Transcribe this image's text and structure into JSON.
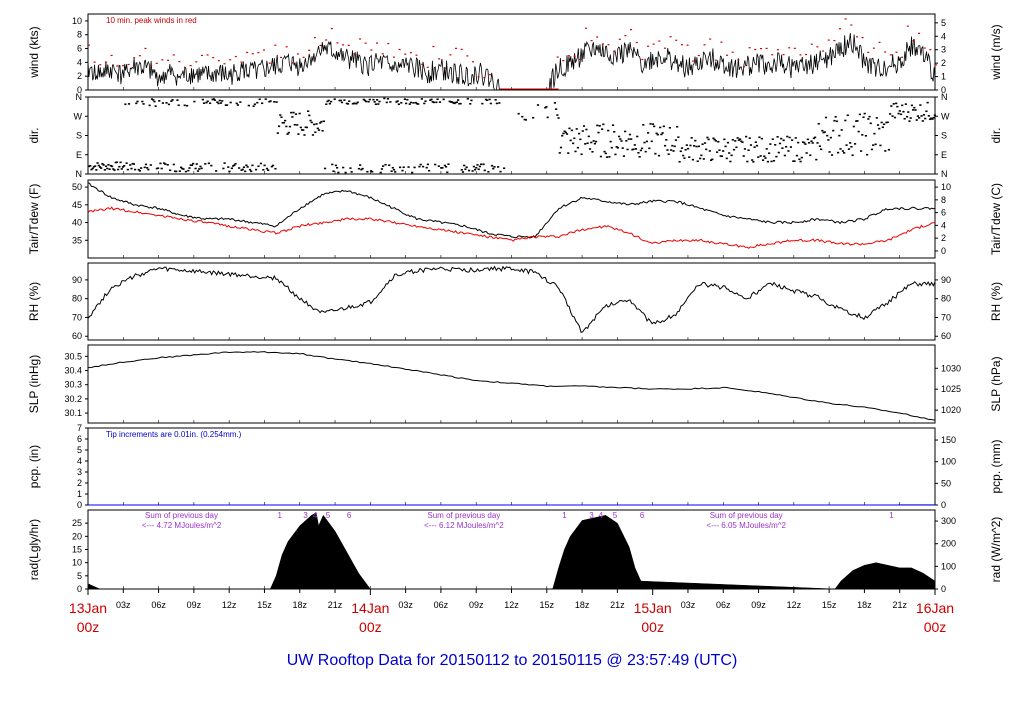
{
  "footer": "UW Rooftop Data for 20150112  to  20150115 @ 23:57:49  (UTC)",
  "colors": {
    "primary": "#000000",
    "peak": "#cc0000",
    "dew": "#ee0000",
    "precip": "#0000ff",
    "note_blue": "#0000cc",
    "note_purple": "#9933cc",
    "day_label": "#cc0000"
  },
  "x_axis": {
    "hours_total": 72,
    "hour_ticks": [
      {
        "h": 3,
        "label": "03z"
      },
      {
        "h": 6,
        "label": "06z"
      },
      {
        "h": 9,
        "label": "09z"
      },
      {
        "h": 12,
        "label": "12z"
      },
      {
        "h": 15,
        "label": "15z"
      },
      {
        "h": 18,
        "label": "18z"
      },
      {
        "h": 21,
        "label": "21z"
      },
      {
        "h": 27,
        "label": "03z"
      },
      {
        "h": 30,
        "label": "06z"
      },
      {
        "h": 33,
        "label": "09z"
      },
      {
        "h": 36,
        "label": "12z"
      },
      {
        "h": 39,
        "label": "15z"
      },
      {
        "h": 42,
        "label": "18z"
      },
      {
        "h": 45,
        "label": "21z"
      },
      {
        "h": 51,
        "label": "03z"
      },
      {
        "h": 54,
        "label": "06z"
      },
      {
        "h": 57,
        "label": "09z"
      },
      {
        "h": 60,
        "label": "12z"
      },
      {
        "h": 63,
        "label": "15z"
      },
      {
        "h": 66,
        "label": "18z"
      },
      {
        "h": 69,
        "label": "21z"
      }
    ],
    "day_labels": [
      {
        "h": 0,
        "day": "13Jan",
        "time": "00z"
      },
      {
        "h": 24,
        "day": "14Jan",
        "time": "00z"
      },
      {
        "h": 48,
        "day": "15Jan",
        "time": "00z"
      },
      {
        "h": 72,
        "day": "16Jan",
        "time": "00z"
      }
    ]
  },
  "chart_data": [
    {
      "type": "line",
      "id": "wind",
      "ylabel": "wind (kts)",
      "ylabel_right": "wind (m/s)",
      "ylim": [
        0,
        11
      ],
      "left_ticks": [
        0,
        2,
        4,
        6,
        8,
        10
      ],
      "right_ticks": [
        0,
        1,
        2,
        3,
        4,
        5
      ],
      "annotation": "10 min. peak winds in red",
      "series": [
        {
          "x": [
            0,
            1,
            2,
            3,
            4,
            5,
            6,
            7,
            8,
            9,
            10,
            11,
            12,
            13,
            14,
            15,
            16,
            17,
            18,
            19,
            20,
            21,
            22,
            23,
            24,
            25,
            26,
            27,
            28,
            29,
            30,
            31,
            32,
            33,
            34,
            35,
            36,
            37,
            38,
            39,
            40,
            41,
            42,
            43,
            44,
            45,
            46,
            47,
            48,
            49,
            50,
            51,
            52,
            53,
            54,
            55,
            56,
            57,
            58,
            59,
            60,
            61,
            62,
            63,
            64,
            65,
            66,
            67,
            68,
            69,
            70,
            71,
            72
          ],
          "y": [
            3,
            2.5,
            3,
            2,
            3.5,
            3,
            2,
            2.5,
            2,
            2.5,
            2,
            2.5,
            2,
            3,
            2.5,
            3,
            3.5,
            4,
            3.5,
            5,
            6,
            5.5,
            4.5,
            4,
            3.5,
            4,
            3,
            3.5,
            3,
            2.5,
            3,
            2.5,
            2,
            2.5,
            2,
            0,
            0,
            0,
            0,
            0,
            3,
            4,
            5,
            6,
            5.5,
            5,
            5.5,
            4,
            4.5,
            5,
            4,
            3,
            4,
            4.5,
            4,
            3,
            3.5,
            4,
            3.5,
            4,
            3,
            3.5,
            4,
            4.5,
            6,
            7,
            4,
            3,
            3.5,
            4,
            6.5,
            5,
            2
          ]
        }
      ]
    },
    {
      "type": "scatter",
      "id": "dir",
      "ylabel": "dir.",
      "ylabel_right": "dir.",
      "categories": [
        "N",
        "E",
        "S",
        "W",
        "N"
      ],
      "ylim": [
        0,
        360
      ]
    },
    {
      "type": "line",
      "id": "temp",
      "ylabel": "Tair/Tdew (F)",
      "ylabel_right": "Tair/Tdew (C)",
      "ylim": [
        30,
        52
      ],
      "left_ticks": [
        35,
        40,
        45,
        50
      ],
      "right_ticks": [
        0,
        2,
        4,
        6,
        8,
        10
      ],
      "series": [
        {
          "x": [
            0,
            2,
            4,
            6,
            8,
            10,
            12,
            14,
            16,
            18,
            20,
            22,
            24,
            26,
            28,
            30,
            32,
            34,
            36,
            38,
            40,
            42,
            44,
            46,
            48,
            50,
            52,
            54,
            56,
            58,
            60,
            62,
            64,
            66,
            68,
            70,
            72
          ],
          "y": [
            51,
            47,
            45,
            44,
            42,
            41,
            41,
            40,
            39,
            44,
            48,
            49,
            47,
            44,
            41,
            40,
            39,
            37,
            36,
            36,
            44,
            47,
            46,
            45,
            46,
            46,
            44,
            42,
            41,
            40,
            40,
            41,
            40,
            41,
            44,
            44,
            44
          ]
        },
        {
          "x": [
            0,
            2,
            4,
            6,
            8,
            10,
            12,
            14,
            16,
            18,
            20,
            22,
            24,
            26,
            28,
            30,
            32,
            34,
            36,
            38,
            40,
            42,
            44,
            46,
            48,
            50,
            52,
            54,
            56,
            58,
            60,
            62,
            64,
            66,
            68,
            70,
            72
          ],
          "y": [
            43,
            44,
            43,
            42,
            41,
            40,
            39,
            38,
            37,
            39,
            40,
            41,
            41,
            40,
            39,
            38,
            37,
            36,
            35,
            36,
            36,
            38,
            39,
            37,
            34,
            35,
            35,
            34,
            33,
            34,
            35,
            35,
            34,
            34,
            35,
            38,
            40
          ]
        }
      ]
    },
    {
      "type": "line",
      "id": "rh",
      "ylabel": "RH (%)",
      "ylabel_right": "RH (%)",
      "ylim": [
        58,
        99
      ],
      "left_ticks": [
        60,
        70,
        80,
        90
      ],
      "right_ticks": [
        60,
        70,
        80,
        90
      ],
      "series": [
        {
          "x": [
            0,
            2,
            4,
            6,
            8,
            10,
            12,
            14,
            16,
            18,
            20,
            22,
            24,
            26,
            28,
            30,
            32,
            34,
            36,
            38,
            40,
            42,
            44,
            46,
            48,
            50,
            52,
            54,
            56,
            58,
            60,
            62,
            64,
            66,
            68,
            70,
            72
          ],
          "y": [
            70,
            86,
            92,
            96,
            95,
            94,
            93,
            92,
            91,
            80,
            72,
            75,
            78,
            92,
            95,
            96,
            95,
            96,
            96,
            94,
            86,
            62,
            76,
            80,
            66,
            72,
            88,
            86,
            80,
            88,
            84,
            81,
            74,
            70,
            78,
            88,
            88
          ]
        }
      ]
    },
    {
      "type": "line",
      "id": "slp",
      "ylabel": "SLP (inHg)",
      "ylabel_right": "SLP (hPa)",
      "ylim": [
        30.03,
        30.58
      ],
      "left_ticks": [
        30.1,
        30.2,
        30.3,
        30.4,
        30.5
      ],
      "right_ticks": [
        1020,
        1025,
        1030
      ],
      "series": [
        {
          "x": [
            0,
            3,
            6,
            9,
            12,
            15,
            18,
            21,
            24,
            27,
            30,
            33,
            36,
            39,
            42,
            45,
            48,
            51,
            54,
            57,
            60,
            63,
            66,
            69,
            72
          ],
          "y": [
            30.42,
            30.46,
            30.49,
            30.51,
            30.53,
            30.53,
            30.52,
            30.48,
            30.45,
            30.41,
            30.37,
            30.33,
            30.31,
            30.29,
            30.29,
            30.28,
            30.27,
            30.27,
            30.28,
            30.25,
            30.21,
            30.17,
            30.14,
            30.1,
            30.05
          ]
        }
      ]
    },
    {
      "type": "line",
      "id": "pcp",
      "ylabel": "pcp. (in)",
      "ylabel_right": "pcp. (mm)",
      "ylim": [
        0,
        7
      ],
      "left_ticks": [
        0,
        1,
        2,
        3,
        4,
        5,
        6,
        7
      ],
      "right_ticks": [
        0,
        50,
        100,
        150
      ],
      "annotation": "Tip increments are 0.01in. (0.254mm.)",
      "series": [
        {
          "x": [
            0,
            68,
            70,
            72
          ],
          "y": [
            0,
            0,
            0.01,
            0.01
          ]
        }
      ]
    },
    {
      "type": "area",
      "id": "rad",
      "ylabel": "rad(Lgly/hr)",
      "ylabel_right": "rad (W/m^2)",
      "ylim": [
        0,
        30
      ],
      "left_ticks": [
        0,
        5,
        10,
        15,
        20,
        25
      ],
      "right_ticks": [
        0,
        100,
        200,
        300
      ],
      "day_summaries": [
        {
          "h": 2,
          "line1": "Sum of previous day",
          "line2": "<--- 4.72 MJoules/m^2"
        },
        {
          "h": 26,
          "line1": "Sum of previous day",
          "line2": "<--- 6.12 MJoules/m^2"
        },
        {
          "h": 50,
          "line1": "Sum of previous day",
          "line2": "<--- 6.05 MJoules/m^2"
        }
      ],
      "cloud_markers": [
        {
          "h": 16.3,
          "label": "1"
        },
        {
          "h": 18.5,
          "label": "3"
        },
        {
          "h": 19.3,
          "label": "4"
        },
        {
          "h": 20.4,
          "label": "5"
        },
        {
          "h": 22.2,
          "label": "6"
        },
        {
          "h": 40.5,
          "label": "1"
        },
        {
          "h": 42.8,
          "label": "3"
        },
        {
          "h": 43.6,
          "label": "4"
        },
        {
          "h": 44.8,
          "label": "5"
        },
        {
          "h": 47.1,
          "label": "6"
        },
        {
          "h": 68.3,
          "label": "1"
        }
      ],
      "series": [
        {
          "x": [
            0,
            0.5,
            1,
            15.5,
            16,
            16.5,
            17,
            18,
            19,
            19.4,
            19.6,
            20,
            21,
            22,
            23,
            24,
            39.5,
            40,
            40.5,
            41,
            42,
            43,
            44,
            45,
            46,
            46.5,
            47,
            63.5,
            64,
            65,
            66,
            67,
            68,
            69,
            70,
            71,
            72
          ],
          "y": [
            2,
            1,
            0,
            0,
            5,
            13,
            18,
            24,
            28,
            29,
            24,
            28,
            22,
            14,
            6,
            0,
            0,
            8,
            15,
            20,
            26,
            27,
            28,
            25,
            16,
            8,
            3,
            0,
            3,
            7,
            9,
            10,
            9,
            8,
            8,
            6,
            3
          ]
        }
      ]
    }
  ]
}
